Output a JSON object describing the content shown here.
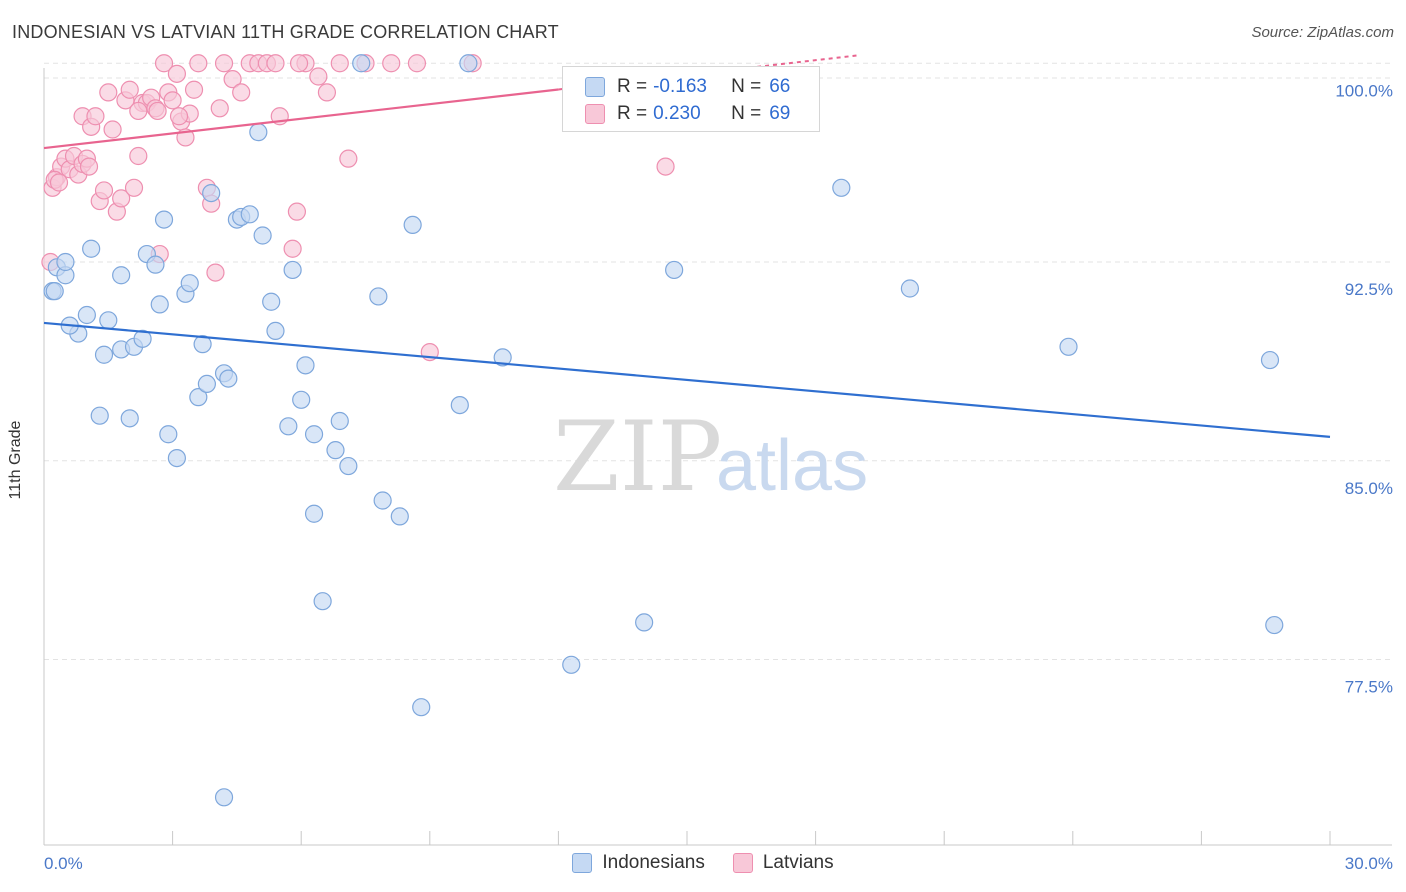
{
  "title": "INDONESIAN VS LATVIAN 11TH GRADE CORRELATION CHART",
  "source": "Source: ZipAtlas.com",
  "watermark": {
    "zip": "ZIP",
    "atlas": "atlas"
  },
  "legend": {
    "indonesians": {
      "r_label": "R =",
      "r_value": "-0.163",
      "n_label": "N =",
      "n_value": "66"
    },
    "latvians": {
      "r_label": "R =",
      "r_value": "0.230",
      "n_label": "N =",
      "n_value": "69"
    }
  },
  "colors": {
    "indonesians_fill": "#c5d9f3",
    "indonesians_stroke": "#7ea7dc",
    "indonesians_line": "#2f6fd0",
    "latvians_fill": "#f8c8d8",
    "latvians_stroke": "#ee8fb0",
    "latvians_line": "#e8648f",
    "tick_text": "#4a78c8",
    "grid": "#e3e3e3"
  },
  "chart_data": {
    "type": "scatter",
    "title": "INDONESIAN VS LATVIAN 11TH GRADE CORRELATION CHART",
    "xlabel": "",
    "ylabel": "11th Grade",
    "xlim": [
      0.0,
      30.0
    ],
    "ylim": [
      70.5,
      100.5
    ],
    "x_tick_labels": [
      "0.0%",
      "30.0%"
    ],
    "y_ticks": [
      77.5,
      85.0,
      92.5,
      100.0
    ],
    "y_tick_labels": [
      "77.5%",
      "85.0%",
      "92.5%",
      "100.0%"
    ],
    "series": [
      {
        "name": "Indonesians",
        "trend": {
          "x": [
            0.0,
            30.0
          ],
          "y": [
            90.2,
            85.9
          ]
        },
        "points": [
          [
            0.2,
            91.4
          ],
          [
            0.3,
            92.3
          ],
          [
            0.5,
            92.0
          ],
          [
            0.5,
            92.5
          ],
          [
            0.8,
            89.8
          ],
          [
            1.0,
            90.5
          ],
          [
            1.1,
            93.0
          ],
          [
            1.3,
            86.7
          ],
          [
            1.4,
            89.0
          ],
          [
            1.5,
            90.3
          ],
          [
            1.8,
            92.0
          ],
          [
            1.8,
            89.2
          ],
          [
            2.0,
            86.6
          ],
          [
            2.1,
            89.3
          ],
          [
            2.3,
            89.6
          ],
          [
            2.4,
            92.8
          ],
          [
            2.6,
            92.4
          ],
          [
            2.7,
            90.9
          ],
          [
            2.8,
            94.1
          ],
          [
            2.9,
            86.0
          ],
          [
            3.1,
            85.1
          ],
          [
            3.3,
            91.3
          ],
          [
            3.4,
            91.7
          ],
          [
            3.6,
            87.4
          ],
          [
            3.7,
            89.4
          ],
          [
            3.8,
            87.9
          ],
          [
            3.9,
            95.1
          ],
          [
            4.2,
            88.3
          ],
          [
            4.3,
            88.1
          ],
          [
            4.5,
            94.1
          ],
          [
            4.6,
            94.2
          ],
          [
            4.8,
            94.3
          ],
          [
            5.0,
            97.4
          ],
          [
            5.1,
            93.5
          ],
          [
            5.3,
            91.0
          ],
          [
            5.4,
            89.9
          ],
          [
            5.7,
            86.3
          ],
          [
            5.8,
            92.2
          ],
          [
            6.0,
            87.3
          ],
          [
            6.1,
            88.6
          ],
          [
            6.3,
            86.0
          ],
          [
            6.3,
            83.0
          ],
          [
            6.5,
            79.7
          ],
          [
            6.9,
            86.5
          ],
          [
            6.8,
            85.4
          ],
          [
            7.1,
            84.8
          ],
          [
            7.4,
            100.0
          ],
          [
            7.8,
            91.2
          ],
          [
            7.9,
            83.5
          ],
          [
            8.3,
            82.9
          ],
          [
            8.6,
            93.9
          ],
          [
            8.8,
            75.7
          ],
          [
            9.7,
            87.1
          ],
          [
            9.9,
            100.0
          ],
          [
            10.7,
            88.9
          ],
          [
            12.3,
            77.3
          ],
          [
            14.0,
            78.9
          ],
          [
            14.7,
            92.2
          ],
          [
            18.6,
            95.3
          ],
          [
            20.2,
            91.5
          ],
          [
            23.9,
            89.3
          ],
          [
            28.6,
            88.8
          ],
          [
            28.7,
            78.8
          ],
          [
            4.2,
            72.3
          ],
          [
            0.25,
            91.4
          ],
          [
            0.6,
            90.1
          ]
        ]
      },
      {
        "name": "Latvians",
        "trend": {
          "x": [
            0.0,
            19.0
          ],
          "y": [
            96.8,
            100.3
          ]
        },
        "points": [
          [
            0.2,
            95.3
          ],
          [
            0.3,
            95.7
          ],
          [
            0.4,
            96.1
          ],
          [
            0.5,
            96.4
          ],
          [
            0.6,
            96.0
          ],
          [
            0.7,
            96.5
          ],
          [
            0.8,
            95.8
          ],
          [
            0.9,
            96.2
          ],
          [
            0.9,
            98.0
          ],
          [
            1.0,
            96.4
          ],
          [
            1.1,
            97.6
          ],
          [
            1.2,
            98.0
          ],
          [
            1.3,
            94.8
          ],
          [
            1.4,
            95.2
          ],
          [
            1.5,
            98.9
          ],
          [
            1.6,
            97.5
          ],
          [
            1.7,
            94.4
          ],
          [
            1.8,
            94.9
          ],
          [
            1.9,
            98.6
          ],
          [
            2.0,
            99.0
          ],
          [
            2.1,
            95.3
          ],
          [
            2.2,
            96.5
          ],
          [
            2.3,
            98.5
          ],
          [
            2.4,
            98.5
          ],
          [
            2.5,
            98.7
          ],
          [
            2.6,
            98.3
          ],
          [
            2.7,
            92.8
          ],
          [
            2.8,
            100.0
          ],
          [
            2.9,
            98.9
          ],
          [
            3.0,
            98.6
          ],
          [
            3.1,
            99.6
          ],
          [
            3.2,
            97.8
          ],
          [
            3.3,
            97.2
          ],
          [
            3.4,
            98.1
          ],
          [
            3.5,
            99.0
          ],
          [
            3.6,
            100.0
          ],
          [
            3.8,
            95.3
          ],
          [
            3.9,
            94.7
          ],
          [
            4.0,
            92.1
          ],
          [
            4.1,
            98.3
          ],
          [
            4.2,
            100.0
          ],
          [
            4.4,
            99.4
          ],
          [
            4.6,
            98.9
          ],
          [
            4.8,
            100.0
          ],
          [
            5.0,
            100.0
          ],
          [
            5.2,
            100.0
          ],
          [
            5.4,
            100.0
          ],
          [
            5.5,
            98.0
          ],
          [
            5.8,
            93.0
          ],
          [
            5.9,
            94.4
          ],
          [
            6.1,
            100.0
          ],
          [
            6.4,
            99.5
          ],
          [
            6.6,
            98.9
          ],
          [
            6.9,
            100.0
          ],
          [
            7.1,
            96.4
          ],
          [
            7.5,
            100.0
          ],
          [
            8.1,
            100.0
          ],
          [
            8.7,
            100.0
          ],
          [
            9.0,
            89.1
          ],
          [
            10.0,
            100.0
          ],
          [
            14.5,
            96.1
          ],
          [
            0.15,
            92.5
          ],
          [
            0.25,
            95.6
          ],
          [
            0.35,
            95.5
          ],
          [
            2.2,
            98.2
          ],
          [
            1.05,
            96.1
          ],
          [
            2.65,
            98.2
          ],
          [
            3.15,
            98.0
          ],
          [
            5.95,
            100.0
          ]
        ]
      }
    ]
  }
}
